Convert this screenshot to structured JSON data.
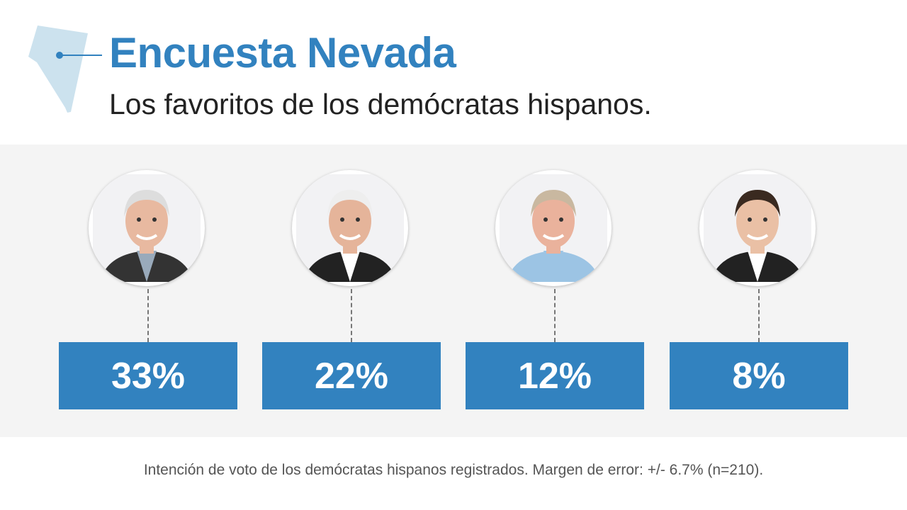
{
  "header": {
    "title": "Encuesta Nevada",
    "subtitle": "Los favoritos de los demócratas hispanos.",
    "state_icon": "nevada-map-icon"
  },
  "colors": {
    "accent": "#3282bf",
    "band": "#f4f4f4",
    "state": "#cce2ee"
  },
  "chart_data": {
    "type": "bar",
    "values": [
      33,
      22,
      12,
      8
    ],
    "labels": [
      "33%",
      "22%",
      "12%",
      "8%"
    ],
    "unit": "%"
  },
  "candidates": [
    {
      "value": "33%",
      "hair": "#ddd",
      "skin": "#e8b9a0",
      "suit": "#333",
      "shirt": "#9ab"
    },
    {
      "value": "22%",
      "hair": "#eee",
      "skin": "#e5b49a",
      "suit": "#222",
      "shirt": "#fff"
    },
    {
      "value": "12%",
      "hair": "#c9b8a0",
      "skin": "#eab29c",
      "suit": "#9cc4e4",
      "shirt": "#9cc4e4"
    },
    {
      "value": "8%",
      "hair": "#3a2a20",
      "skin": "#eac0a5",
      "suit": "#222",
      "shirt": "#fff"
    }
  ],
  "footer": {
    "note": "Intención de voto de los demócratas hispanos registrados. Margen de error: +/- 6.7% (n=210)."
  }
}
